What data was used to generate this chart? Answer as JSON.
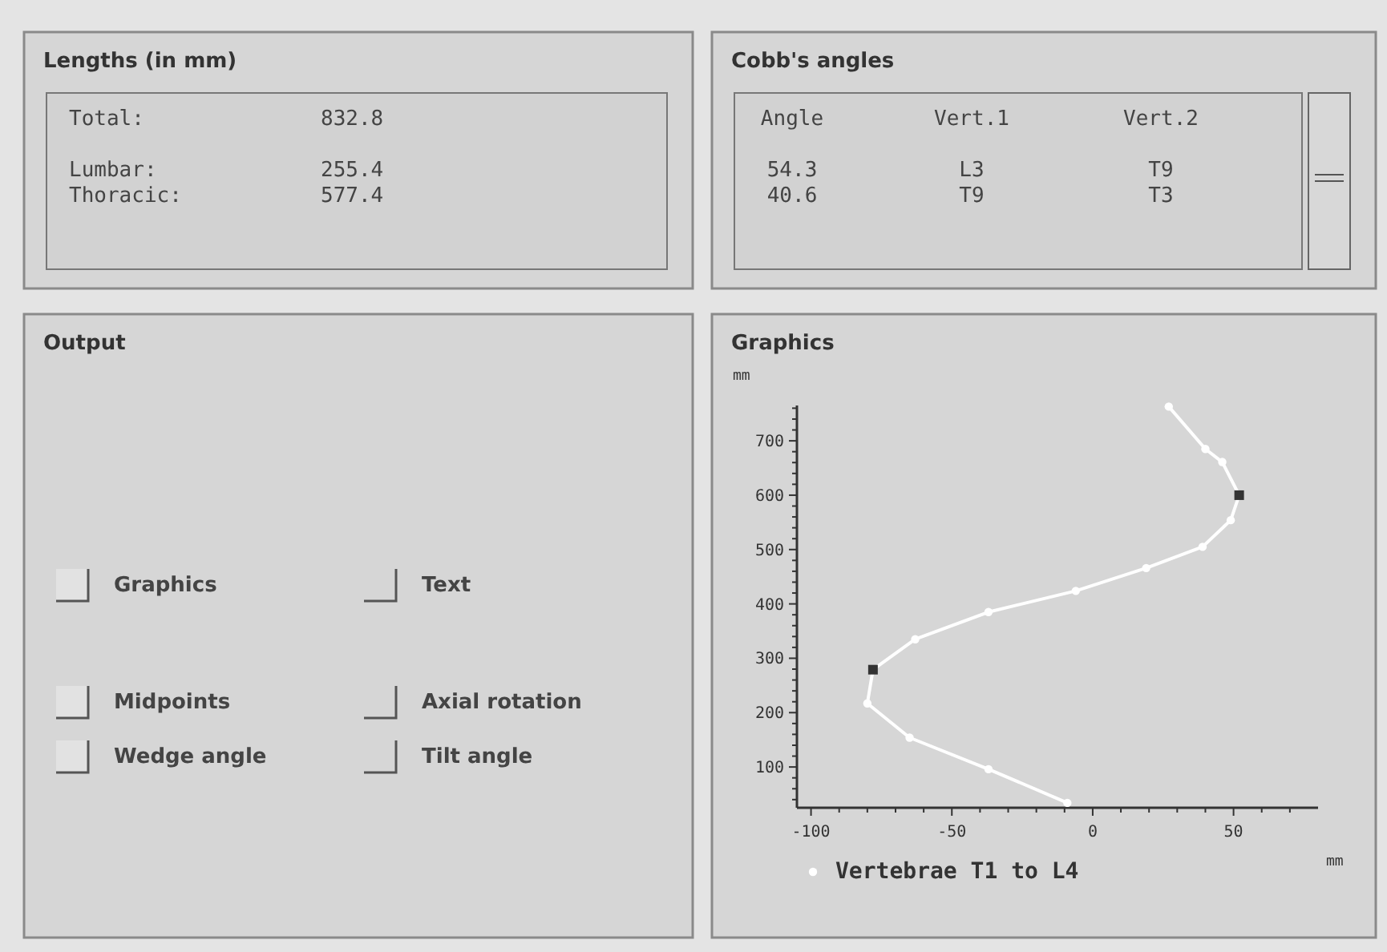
{
  "chart_data": [
    {
      "type": "other",
      "title": "Lengths (in mm)",
      "annotations": [
        "Total:",
        "832.8",
        "Lumbar:",
        "255.4",
        "Thoracic:",
        "577.4"
      ]
    },
    {
      "type": "other",
      "title": "Cobb's angles",
      "annotations": [
        "Angle",
        "Vert.1",
        "Vert.2",
        "54.3",
        "L3",
        "T9",
        "40.6",
        "T9",
        "T3"
      ]
    },
    {
      "type": "other",
      "title": "Output",
      "annotations": [
        "Graphics",
        "Text",
        "Midpoints",
        "Axial rotation",
        "Wedge angle",
        "Tilt angle"
      ]
    },
    {
      "type": "line",
      "title": "Graphics",
      "xlabel": "mm",
      "ylabel": "mm",
      "xlim": [
        -105,
        80
      ],
      "ylim": [
        25,
        765
      ],
      "legend": "bottom",
      "marker": "circle",
      "xticks": [
        -100,
        {
          "value": -90,
          "label": null
        },
        {
          "value": -80,
          "label": null
        },
        {
          "value": -70,
          "label": null
        },
        {
          "value": -60,
          "label": null
        },
        -50,
        {
          "value": -40,
          "label": null
        },
        {
          "value": -30,
          "label": null
        },
        {
          "value": -20,
          "label": null
        },
        {
          "value": -10,
          "label": null
        },
        0,
        {
          "value": 10,
          "label": null
        },
        {
          "value": 20,
          "label": null
        },
        {
          "value": 30,
          "label": null
        },
        {
          "value": 40,
          "label": null
        },
        50,
        {
          "value": 60,
          "label": null
        },
        {
          "value": 70,
          "label": null
        }
      ],
      "yticks": [
        {
          "value": 40,
          "label": null
        },
        {
          "value": 60,
          "label": null
        },
        {
          "value": 80,
          "label": null
        },
        100,
        {
          "value": 120,
          "label": null
        },
        {
          "value": 140,
          "label": null
        },
        {
          "value": 160,
          "label": null
        },
        {
          "value": 180,
          "label": null
        },
        200,
        {
          "value": 220,
          "label": null
        },
        {
          "value": 240,
          "label": null
        },
        {
          "value": 260,
          "label": null
        },
        {
          "value": 280,
          "label": null
        },
        300,
        {
          "value": 320,
          "label": null
        },
        {
          "value": 340,
          "label": null
        },
        {
          "value": 360,
          "label": null
        },
        {
          "value": 380,
          "label": null
        },
        400,
        {
          "value": 420,
          "label": null
        },
        {
          "value": 440,
          "label": null
        },
        {
          "value": 460,
          "label": null
        },
        {
          "value": 480,
          "label": null
        },
        500,
        {
          "value": 520,
          "label": null
        },
        {
          "value": 540,
          "label": null
        },
        {
          "value": 560,
          "label": null
        },
        {
          "value": 580,
          "label": null
        },
        600,
        {
          "value": 620,
          "label": null
        },
        {
          "value": 640,
          "label": null
        },
        {
          "value": 660,
          "label": null
        },
        {
          "value": 680,
          "label": null
        },
        700,
        {
          "value": 720,
          "label": null
        },
        {
          "value": 740,
          "label": null
        },
        {
          "value": 760,
          "label": null
        }
      ],
      "series": [
        {
          "name": "Vertebrae T1 to L4",
          "color": "#ffffff",
          "x": [
            27,
            40,
            46,
            52,
            49,
            39,
            19,
            -6,
            -37,
            -63,
            -78,
            -80,
            -65,
            -37,
            -9
          ],
          "values": [
            763,
            685,
            661,
            600,
            554,
            505,
            466,
            424,
            385,
            335,
            279,
            217,
            154,
            96,
            34
          ]
        },
        {
          "type": "scatter",
          "marker": "square",
          "color": "#333333",
          "x": [
            52,
            -78
          ],
          "values": [
            600,
            279
          ]
        }
      ]
    }
  ]
}
